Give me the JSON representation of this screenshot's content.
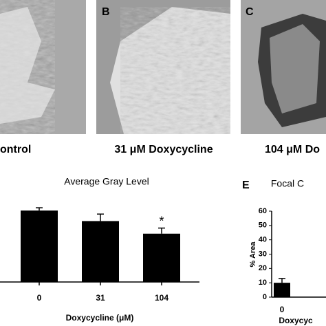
{
  "panels": [
    {
      "caption": "ontrol"
    },
    {
      "letter": "B",
      "caption": "31 μM Doxycycline"
    },
    {
      "letter": "C",
      "caption": "104 μM Do"
    }
  ],
  "chart_data": [
    {
      "type": "bar",
      "title": "Average Gray Level",
      "x_label": "Doxycycline (μM)",
      "categories": [
        "0",
        "31",
        "104"
      ],
      "values": [
        102,
        87,
        69
      ],
      "errors": [
        4,
        10,
        8
      ],
      "annotations": [
        {
          "category": 2,
          "text": "*"
        }
      ],
      "color": "#000000",
      "ylim": [
        0,
        110
      ]
    },
    {
      "type": "bar",
      "letter": "E",
      "title": "Focal C",
      "x_label": "Doxycyc",
      "y_label": "% Area",
      "categories": [
        "0"
      ],
      "values": [
        10
      ],
      "errors": [
        3
      ],
      "color": "#000000",
      "ylim": [
        0,
        60
      ],
      "yticks": [
        0,
        10,
        20,
        30,
        40,
        50,
        60
      ]
    }
  ]
}
